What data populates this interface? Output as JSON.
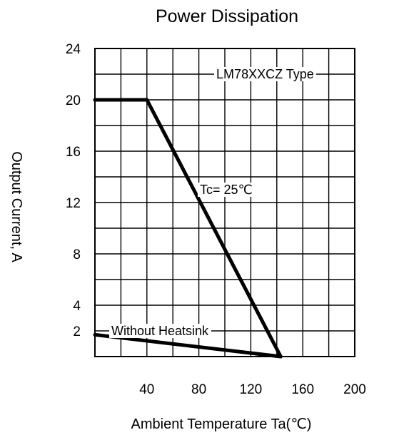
{
  "chart_data": {
    "type": "line",
    "title": "Power Dissipation",
    "xlabel": "Ambient Temperature Ta(℃)",
    "ylabel": "Output Current, A",
    "xlim": [
      0,
      200
    ],
    "ylim": [
      0,
      24
    ],
    "x_ticks": [
      {
        "value": 40,
        "label": "40"
      },
      {
        "value": 80,
        "label": "80"
      },
      {
        "value": 120,
        "label": "120"
      },
      {
        "value": 160,
        "label": "160"
      },
      {
        "value": 200,
        "label": "200"
      }
    ],
    "y_ticks": [
      {
        "value": 2,
        "label": "2"
      },
      {
        "value": 4,
        "label": "4"
      },
      {
        "value": 8,
        "label": "8"
      },
      {
        "value": 12,
        "label": "12"
      },
      {
        "value": 16,
        "label": "16"
      },
      {
        "value": 20,
        "label": "20"
      },
      {
        "value": 24,
        "label": "24"
      }
    ],
    "grid": true,
    "series": [
      {
        "name": "Tc= 25℃",
        "points": [
          [
            0,
            20
          ],
          [
            40,
            20
          ],
          [
            143,
            0
          ]
        ]
      },
      {
        "name": "Without Heatsink",
        "points": [
          [
            0,
            1.7
          ],
          [
            143,
            0
          ]
        ]
      }
    ],
    "annotations": [
      {
        "text": "LM78XXCZ Type",
        "x": 131,
        "y": 22
      },
      {
        "text": "Tc= 25℃",
        "x": 101,
        "y": 13
      },
      {
        "text": "Without Heatsink",
        "x": 50,
        "y": 2
      }
    ]
  }
}
